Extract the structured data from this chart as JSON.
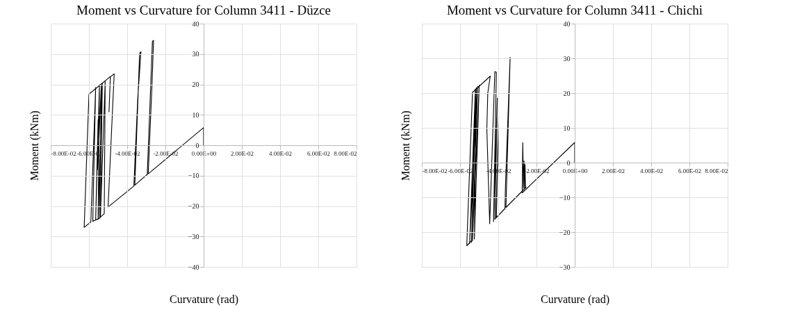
{
  "chart_data": [
    {
      "type": "line",
      "title": "Moment vs Curvature for Column 3411 - Düzce",
      "xlabel": "Curvature (rad)",
      "ylabel": "Moment (kNm)",
      "xlim": [
        -0.08,
        0.08
      ],
      "ylim": [
        -40,
        40
      ],
      "xticks": [
        {
          "value": -0.08,
          "label": "-8.00E-02"
        },
        {
          "value": -0.06,
          "label": "-6.00E-02"
        },
        {
          "value": -0.04,
          "label": "-4.00E-02"
        },
        {
          "value": -0.02,
          "label": "-2.00E-02"
        },
        {
          "value": 0,
          "label": "0.00E+00"
        },
        {
          "value": 0.02,
          "label": "2.00E-02"
        },
        {
          "value": 0.04,
          "label": "4.00E-02"
        },
        {
          "value": 0.06,
          "label": "6.00E-02"
        },
        {
          "value": 0.08,
          "label": "8.00E-02"
        }
      ],
      "yticks": [
        -40,
        -30,
        -20,
        -10,
        0,
        10,
        20,
        30,
        40
      ],
      "grid": true,
      "marker": "none",
      "line_style": "solid",
      "series": [
        {
          "color": "#000000",
          "x": [
            0,
            0,
            -0.029,
            -0.027,
            -0.0262,
            -0.0268,
            -0.0295,
            -0.036,
            -0.0335,
            -0.0328,
            -0.0345,
            -0.0365,
            -0.05,
            -0.0468,
            -0.0488,
            -0.0495,
            -0.0488,
            -0.06,
            -0.0625,
            -0.059,
            -0.0565,
            -0.058,
            -0.0545,
            -0.0535,
            -0.0555,
            -0.0552,
            -0.0565,
            -0.0545,
            -0.0552,
            -0.053,
            -0.054,
            -0.0515,
            -0.052,
            -0.0555
          ],
          "values": [
            0,
            5.8,
            -9.4,
            20,
            34.5,
            34.2,
            -9.6,
            -13.1,
            30.2,
            30.8,
            15,
            -13.4,
            -20.3,
            23.5,
            22.5,
            11,
            22.6,
            16.8,
            -27,
            -25.2,
            19,
            -25,
            -24,
            20.2,
            -8,
            8.5,
            -24.6,
            20,
            -24,
            20.5,
            -23.8,
            21.2,
            -22.5,
            -24.5
          ]
        }
      ]
    },
    {
      "type": "line",
      "title": "Moment vs Curvature for Column 3411 - Chichi",
      "xlabel": "Curvature (rad)",
      "ylabel": "Moment (kNm)",
      "xlim": [
        -0.08,
        0.08
      ],
      "ylim": [
        -30,
        40
      ],
      "xticks": [
        {
          "value": -0.08,
          "label": "-8.00E-02"
        },
        {
          "value": -0.06,
          "label": "-6.00E-02"
        },
        {
          "value": -0.04,
          "label": "-4.00E-02"
        },
        {
          "value": -0.02,
          "label": "-2.00E-02"
        },
        {
          "value": 0,
          "label": "0.00E+00"
        },
        {
          "value": 0.02,
          "label": "2.00E-02"
        },
        {
          "value": 0.04,
          "label": "4.00E-02"
        },
        {
          "value": 0.06,
          "label": "6.00E-02"
        },
        {
          "value": 0.08,
          "label": "8.00E-02"
        }
      ],
      "yticks": [
        -30,
        -20,
        -10,
        0,
        10,
        20,
        30,
        40
      ],
      "grid": true,
      "marker": "none",
      "line_style": "solid",
      "series": [
        {
          "color": "#000000",
          "x": [
            0,
            0,
            -0.0275,
            -0.0272,
            -0.0268,
            -0.0265,
            -0.0262,
            -0.026,
            -0.0258,
            -0.0255,
            -0.036,
            -0.0338,
            -0.0363,
            -0.0365,
            -0.041,
            -0.0398,
            -0.0412,
            -0.0418,
            -0.0405,
            -0.0425,
            -0.041,
            -0.0418,
            -0.0445,
            -0.046,
            -0.0455,
            -0.0442,
            -0.0535,
            -0.0565,
            -0.054,
            -0.052,
            -0.055,
            -0.0508,
            -0.0535,
            -0.05,
            -0.0525,
            -0.0515,
            -0.054
          ],
          "values": [
            0,
            5.8,
            -8.7,
            5.8,
            -7.4,
            0.5,
            -7.3,
            -0.5,
            -7.1,
            -7.1,
            -12.9,
            30.3,
            -7.5,
            -13.2,
            -15.8,
            13.3,
            -15.9,
            -16.3,
            18.6,
            -17,
            26,
            26.2,
            -17.6,
            9.8,
            20,
            24.9,
            20.2,
            -23.9,
            -22.5,
            21.2,
            -23.3,
            22,
            -22.5,
            22.3,
            -22,
            21.6,
            -23
          ]
        }
      ]
    }
  ]
}
